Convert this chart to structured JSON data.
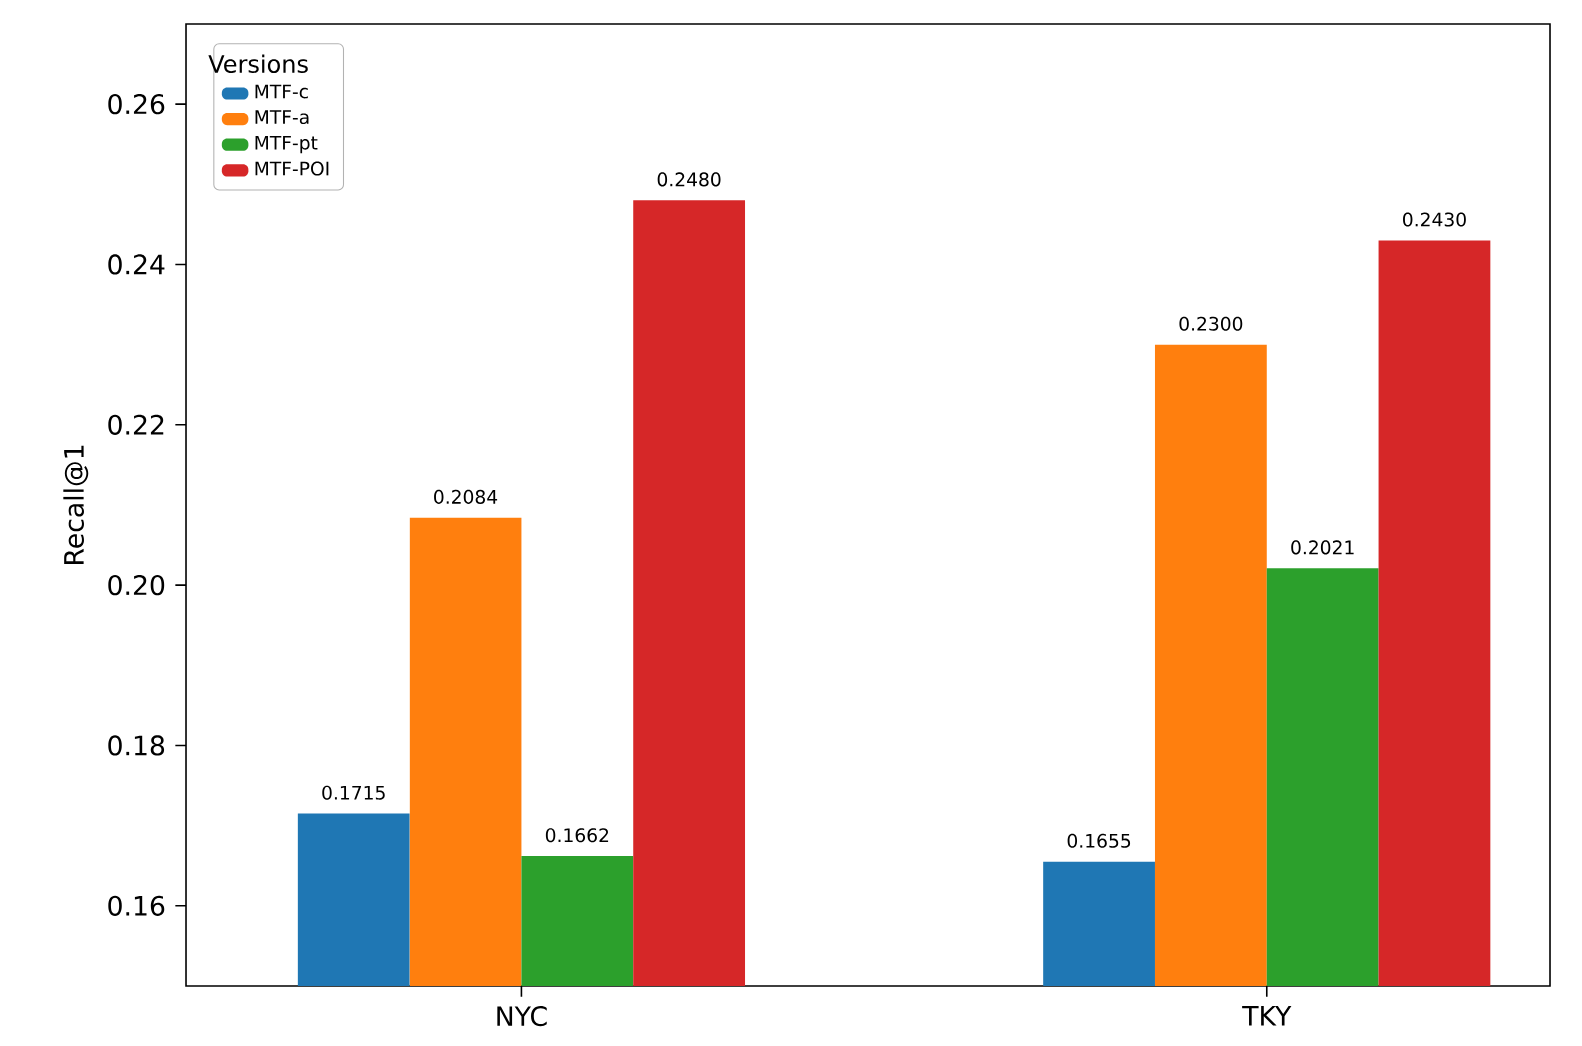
{
  "chart_data": {
    "type": "bar",
    "ylabel": "Recall@1",
    "legend_title": "Versions",
    "categories": [
      "NYC",
      "TKY"
    ],
    "series": [
      {
        "name": "MTF-c",
        "color": "#1f77b4",
        "values": [
          0.1715,
          0.1655
        ],
        "value_labels": [
          "0.1715",
          "0.1655"
        ]
      },
      {
        "name": "MTF-a",
        "color": "#ff7f0e",
        "values": [
          0.2084,
          0.23
        ],
        "value_labels": [
          "0.2084",
          "0.2300"
        ]
      },
      {
        "name": "MTF-pt",
        "color": "#2ca02c",
        "values": [
          0.1662,
          0.2021
        ],
        "value_labels": [
          "0.1662",
          "0.2021"
        ]
      },
      {
        "name": "MTF-POI",
        "color": "#d62728",
        "values": [
          0.248,
          0.243
        ],
        "value_labels": [
          "0.2480",
          "0.2430"
        ]
      }
    ],
    "ylim": [
      0.15,
      0.27
    ],
    "yticks": [
      0.16,
      0.18,
      {
        "value": 0.2,
        "label": "0.20"
      },
      0.22,
      0.24,
      0.26
    ],
    "legend": "top left",
    "grid": false
  }
}
